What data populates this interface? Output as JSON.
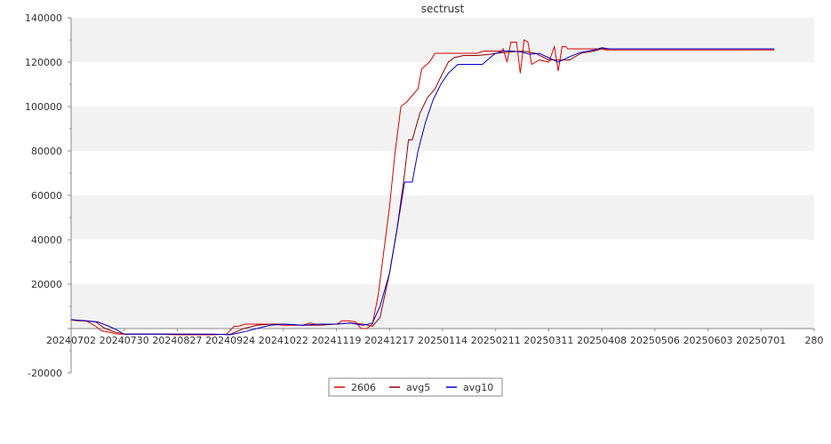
{
  "chart_data": {
    "type": "line",
    "title": "sectrust",
    "xlabel": "",
    "ylabel": "",
    "ylim": [
      -20000,
      140000
    ],
    "yticks": [
      -20000,
      0,
      20000,
      40000,
      60000,
      80000,
      100000,
      120000,
      140000
    ],
    "ytick_labels": [
      "-20000",
      "",
      "20000",
      "40000",
      "60000",
      "80000",
      "100000",
      "120000",
      "140000"
    ],
    "xlim": [
      "2024-07-02",
      "2025-07-29"
    ],
    "xticks": [
      "2024-07-02",
      "2024-07-30",
      "2024-08-27",
      "2024-09-24",
      "2024-10-22",
      "2024-11-19",
      "2024-12-17",
      "2025-01-14",
      "2025-02-11",
      "2025-03-11",
      "2025-04-08",
      "2025-05-06",
      "2025-06-03",
      "2025-07-01",
      "2025-07-29"
    ],
    "xtick_labels": [
      "20240702",
      "20240730",
      "20240827",
      "20240924",
      "20241022",
      "20241119",
      "20241217",
      "20250114",
      "20250211",
      "20250311",
      "20250408",
      "20250506",
      "20250603",
      "20250701",
      "280"
    ],
    "grid": "horizontal alternating bands",
    "legend_position": "bottom-center",
    "series": [
      {
        "name": "2606",
        "color": "#dd0000",
        "x": [
          "2024-07-02",
          "2024-07-05",
          "2024-07-10",
          "2024-07-15",
          "2024-07-18",
          "2024-07-21",
          "2024-07-24",
          "2024-07-27",
          "2024-07-30",
          "2024-08-05",
          "2024-08-15",
          "2024-08-27",
          "2024-09-05",
          "2024-09-15",
          "2024-09-22",
          "2024-09-26",
          "2024-09-28",
          "2024-10-02",
          "2024-10-05",
          "2024-10-10",
          "2024-10-15",
          "2024-10-22",
          "2024-10-25",
          "2024-11-01",
          "2024-11-05",
          "2024-11-08",
          "2024-11-12",
          "2024-11-19",
          "2024-11-22",
          "2024-11-25",
          "2024-11-29",
          "2024-12-02",
          "2024-12-05",
          "2024-12-08",
          "2024-12-11",
          "2024-12-14",
          "2024-12-17",
          "2024-12-20",
          "2024-12-23",
          "2024-12-26",
          "2024-12-29",
          "2025-01-01",
          "2025-01-03",
          "2025-01-07",
          "2025-01-10",
          "2025-01-12",
          "2025-01-14",
          "2025-01-16",
          "2025-01-18",
          "2025-01-20",
          "2025-01-25",
          "2025-02-01",
          "2025-02-05",
          "2025-02-11",
          "2025-02-14",
          "2025-02-15",
          "2025-02-17",
          "2025-02-19",
          "2025-02-22",
          "2025-02-24",
          "2025-02-26",
          "2025-02-28",
          "2025-03-02",
          "2025-03-06",
          "2025-03-11",
          "2025-03-14",
          "2025-03-16",
          "2025-03-18",
          "2025-03-20",
          "2025-03-21",
          "2025-03-24",
          "2025-03-28",
          "2025-04-01",
          "2025-04-05",
          "2025-04-08",
          "2025-04-10",
          "2025-05-06",
          "2025-06-03",
          "2025-07-01",
          "2025-07-08"
        ],
        "y": [
          4000,
          3500,
          3500,
          1000,
          -1000,
          -1500,
          -2000,
          -2500,
          -2500,
          -2500,
          -2500,
          -2800,
          -2800,
          -2800,
          -2500,
          1000,
          1000,
          2000,
          2000,
          2000,
          2000,
          1500,
          1500,
          1500,
          2500,
          2000,
          2000,
          2000,
          3500,
          3500,
          3000,
          0,
          0,
          2000,
          15000,
          35000,
          55000,
          80000,
          100000,
          102000,
          105000,
          108000,
          117000,
          120000,
          124000,
          124000,
          124000,
          124000,
          124000,
          124000,
          124000,
          124000,
          125000,
          125000,
          125000,
          126000,
          120000,
          129000,
          129000,
          115000,
          130000,
          129000,
          119000,
          121000,
          120000,
          127000,
          116000,
          127000,
          127000,
          126000,
          126000,
          126000,
          126000,
          126000,
          126000,
          125500,
          125500,
          125500,
          125500,
          125500
        ]
      },
      {
        "name": "avg5",
        "color": "#990000",
        "x": [
          "2024-07-02",
          "2024-07-08",
          "2024-07-15",
          "2024-07-20",
          "2024-07-25",
          "2024-07-30",
          "2024-08-05",
          "2024-08-27",
          "2024-09-15",
          "2024-09-24",
          "2024-10-01",
          "2024-10-08",
          "2024-10-15",
          "2024-10-22",
          "2024-11-01",
          "2024-11-10",
          "2024-11-19",
          "2024-11-26",
          "2024-12-03",
          "2024-12-08",
          "2024-12-12",
          "2024-12-17",
          "2024-12-21",
          "2024-12-25",
          "2024-12-27",
          "2024-12-29",
          "2025-01-02",
          "2025-01-06",
          "2025-01-10",
          "2025-01-14",
          "2025-01-17",
          "2025-01-20",
          "2025-01-25",
          "2025-02-01",
          "2025-02-08",
          "2025-02-11",
          "2025-02-18",
          "2025-02-25",
          "2025-03-04",
          "2025-03-11",
          "2025-03-15",
          "2025-03-22",
          "2025-03-28",
          "2025-04-04",
          "2025-04-08",
          "2025-04-12",
          "2025-05-06",
          "2025-06-03",
          "2025-07-01",
          "2025-07-08"
        ],
        "y": [
          4000,
          3500,
          3000,
          0,
          -1500,
          -2500,
          -2500,
          -2500,
          -2600,
          -2600,
          0,
          1500,
          2000,
          2000,
          1500,
          1500,
          2000,
          2500,
          2000,
          1000,
          5000,
          25000,
          45000,
          70000,
          85000,
          85000,
          97000,
          104000,
          108000,
          115000,
          120000,
          122000,
          123000,
          123000,
          123500,
          124000,
          124500,
          125000,
          124000,
          121000,
          121000,
          121000,
          124000,
          125000,
          126000,
          126000,
          126000,
          126000,
          126000,
          126000
        ]
      },
      {
        "name": "avg10",
        "color": "#0000cc",
        "x": [
          "2024-07-02",
          "2024-07-10",
          "2024-07-16",
          "2024-07-22",
          "2024-07-26",
          "2024-07-30",
          "2024-08-05",
          "2024-08-27",
          "2024-09-15",
          "2024-09-24",
          "2024-10-01",
          "2024-10-08",
          "2024-10-15",
          "2024-10-22",
          "2024-11-01",
          "2024-11-10",
          "2024-11-19",
          "2024-11-26",
          "2024-12-03",
          "2024-12-08",
          "2024-12-12",
          "2024-12-17",
          "2024-12-21",
          "2024-12-25",
          "2024-12-29",
          "2025-01-01",
          "2025-01-05",
          "2025-01-09",
          "2025-01-13",
          "2025-01-17",
          "2025-01-22",
          "2025-01-28",
          "2025-02-01",
          "2025-02-04",
          "2025-02-08",
          "2025-02-11",
          "2025-02-15",
          "2025-02-20",
          "2025-02-25",
          "2025-03-01",
          "2025-03-06",
          "2025-03-11",
          "2025-03-16",
          "2025-03-22",
          "2025-03-28",
          "2025-04-04",
          "2025-04-08",
          "2025-04-12",
          "2025-05-06",
          "2025-06-03",
          "2025-07-01",
          "2025-07-08"
        ],
        "y": [
          4000,
          3500,
          3000,
          1000,
          -500,
          -2500,
          -2500,
          -2500,
          -2500,
          -2800,
          -1500,
          0,
          1500,
          2000,
          1500,
          2000,
          2000,
          2500,
          1500,
          2500,
          10000,
          25000,
          45000,
          66000,
          66000,
          80000,
          93000,
          103000,
          110000,
          115000,
          119000,
          119000,
          119000,
          119000,
          122000,
          124000,
          125000,
          125000,
          124500,
          123500,
          124000,
          122000,
          120000,
          122500,
          124500,
          125500,
          126500,
          126000,
          126000,
          126000,
          126000,
          126000
        ]
      }
    ]
  }
}
